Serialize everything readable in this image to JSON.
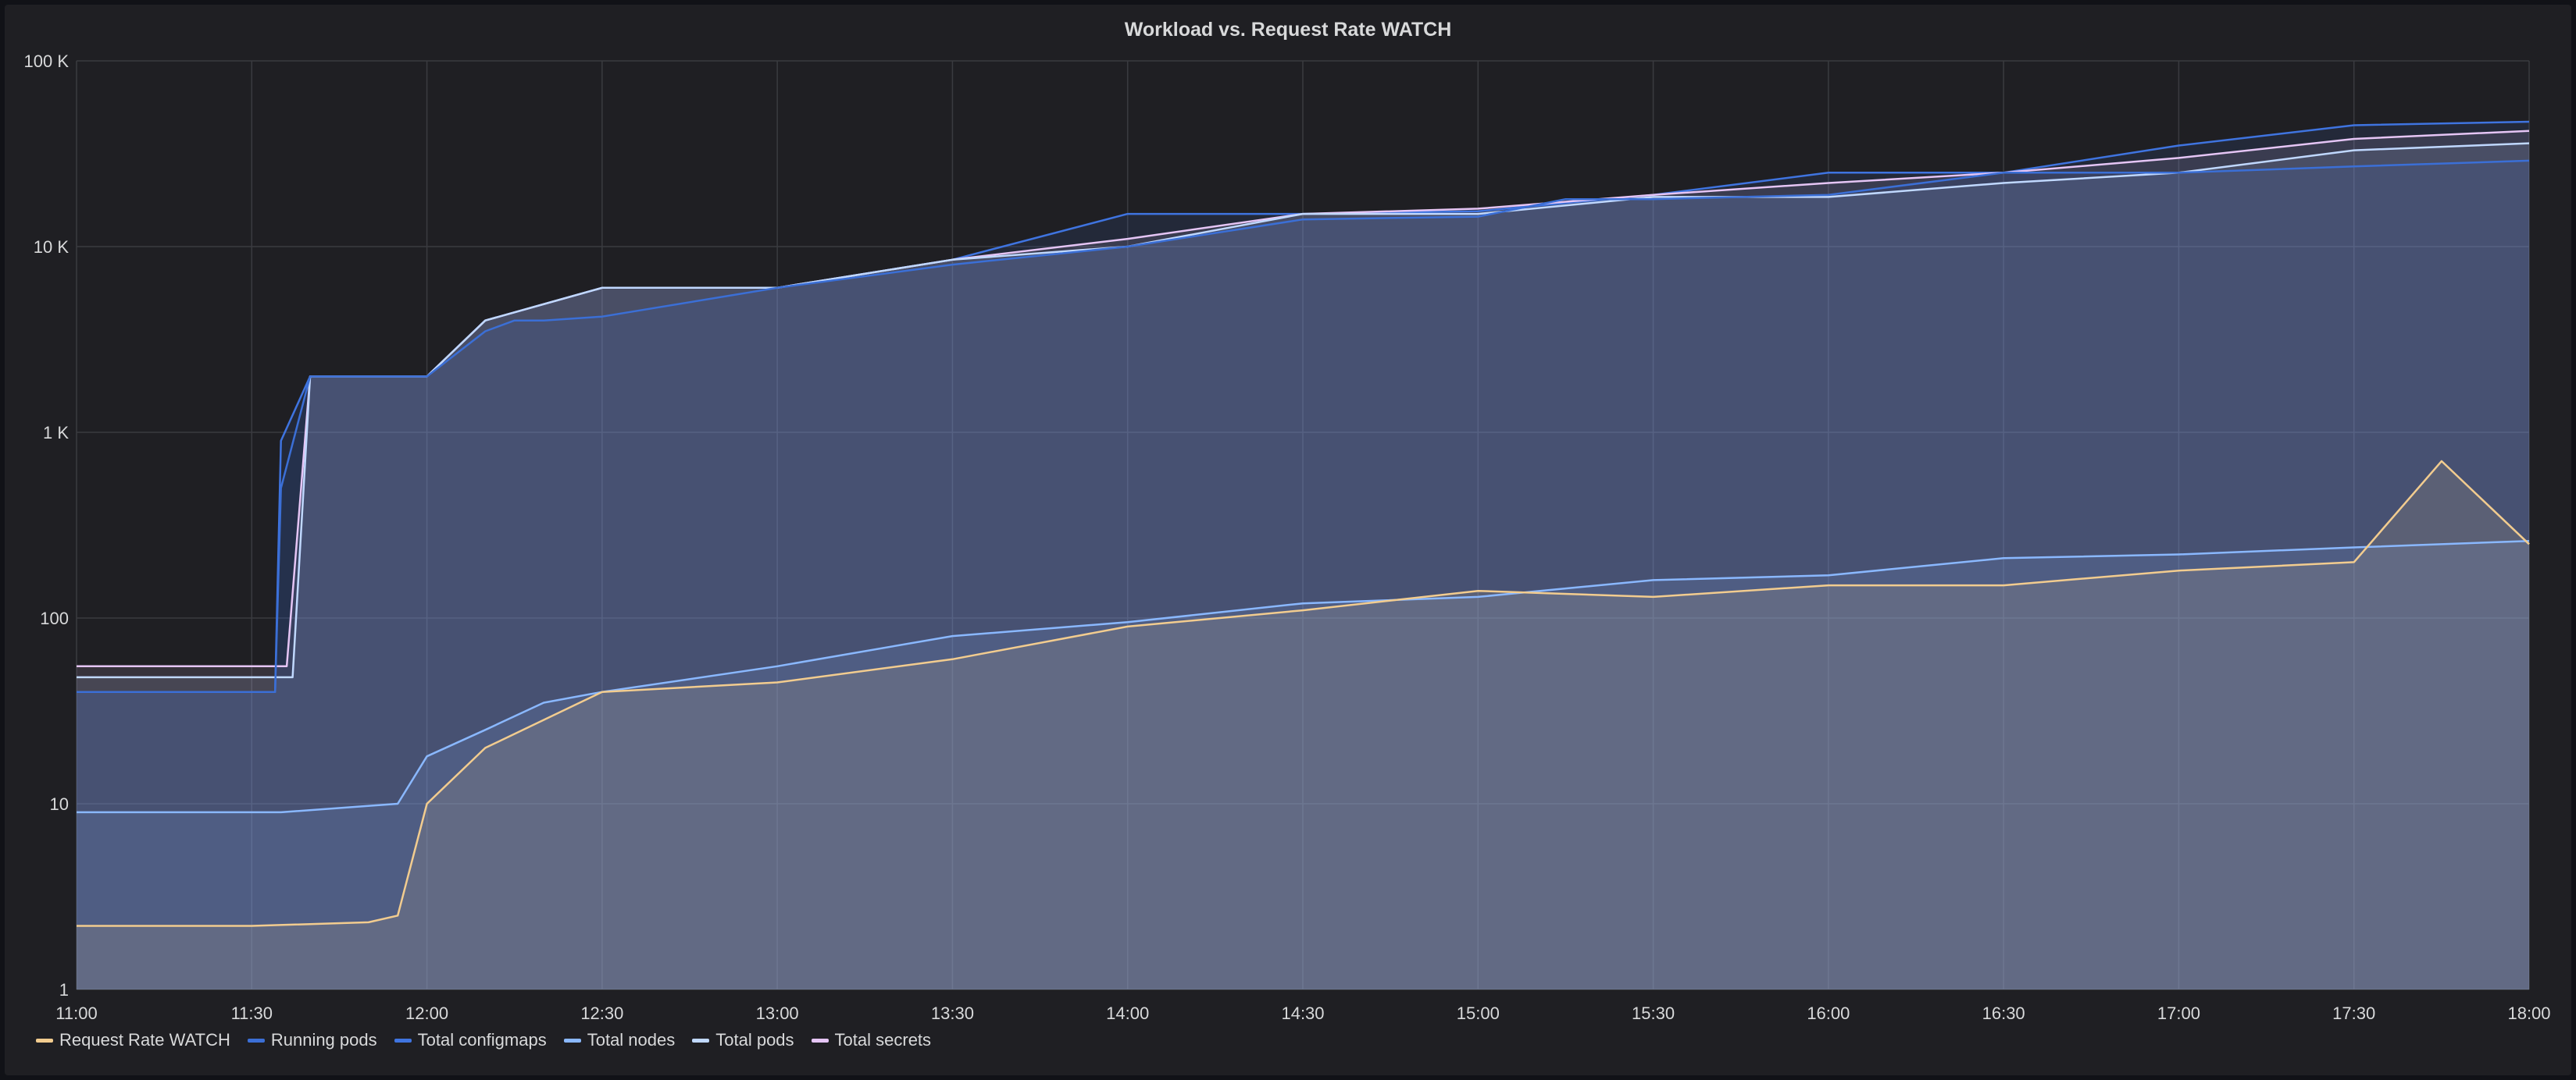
{
  "panel": {
    "title": "Workload vs. Request Rate WATCH"
  },
  "legend": [
    {
      "label": "Request Rate WATCH",
      "color": "#f2cc8f"
    },
    {
      "label": "Running pods",
      "color": "#3b6fd6"
    },
    {
      "label": "Total configmaps",
      "color": "#3f74e0"
    },
    {
      "label": "Total nodes",
      "color": "#8ab8ff"
    },
    {
      "label": "Total pods",
      "color": "#c0d8ff"
    },
    {
      "label": "Total secrets",
      "color": "#e5c5f5"
    }
  ],
  "chart_data": {
    "type": "line",
    "title": "Workload vs. Request Rate WATCH",
    "y_scale": "log",
    "ylim": [
      1,
      100000
    ],
    "y_ticks": [
      "1",
      "10",
      "100",
      "1 K",
      "10 K",
      "100 K"
    ],
    "y_tick_values": [
      1,
      10,
      100,
      1000,
      10000,
      100000
    ],
    "xlim": [
      "11:00",
      "18:00"
    ],
    "x_ticks": [
      "11:00",
      "11:30",
      "12:00",
      "12:30",
      "13:00",
      "13:30",
      "14:00",
      "14:30",
      "15:00",
      "15:30",
      "16:00",
      "16:30",
      "17:00",
      "17:30",
      "18:00"
    ],
    "grid": true,
    "legend_position": "bottom-left",
    "series": [
      {
        "name": "Request Rate WATCH",
        "color": "#f2cc8f",
        "x": [
          "11:00",
          "11:30",
          "11:50",
          "11:55",
          "12:00",
          "12:10",
          "12:30",
          "13:00",
          "13:30",
          "14:00",
          "14:30",
          "15:00",
          "15:30",
          "16:00",
          "16:30",
          "17:00",
          "17:30",
          "17:45",
          "18:00"
        ],
        "y": [
          2.2,
          2.2,
          2.3,
          2.5,
          10,
          20,
          40,
          45,
          60,
          90,
          110,
          140,
          130,
          150,
          150,
          180,
          200,
          700,
          250
        ]
      },
      {
        "name": "Running pods",
        "color": "#3b6fd6",
        "x": [
          "11:00",
          "11:34",
          "11:35",
          "11:40",
          "12:00",
          "12:10",
          "12:15",
          "12:20",
          "12:30",
          "13:00",
          "13:30",
          "14:00",
          "14:30",
          "15:00",
          "15:15",
          "15:20",
          "15:30",
          "16:00",
          "16:30",
          "17:00",
          "17:30",
          "18:00"
        ],
        "y": [
          40,
          40,
          500,
          2000,
          2000,
          3500,
          4000,
          4000,
          4200,
          6000,
          8000,
          10000,
          14000,
          14500,
          18000,
          18000,
          18000,
          19000,
          25000,
          25000,
          27000,
          29000
        ]
      },
      {
        "name": "Total configmaps",
        "color": "#3f74e0",
        "x": [
          "11:00",
          "11:34",
          "11:35",
          "11:40",
          "12:00",
          "12:10",
          "12:30",
          "13:00",
          "13:30",
          "14:00",
          "14:30",
          "15:00",
          "15:30",
          "16:00",
          "16:30",
          "17:00",
          "17:30",
          "18:00"
        ],
        "y": [
          40,
          40,
          900,
          2000,
          2000,
          4000,
          6000,
          6000,
          8500,
          15000,
          15000,
          15500,
          19000,
          25000,
          25000,
          35000,
          45000,
          47000
        ]
      },
      {
        "name": "Total nodes",
        "color": "#8ab8ff",
        "x": [
          "11:00",
          "11:34",
          "11:35",
          "11:55",
          "12:00",
          "12:10",
          "12:20",
          "12:30",
          "13:00",
          "13:30",
          "14:00",
          "14:30",
          "15:00",
          "15:30",
          "16:00",
          "16:30",
          "17:00",
          "17:30",
          "18:00"
        ],
        "y": [
          9,
          9,
          9,
          10,
          18,
          25,
          35,
          40,
          55,
          80,
          95,
          120,
          130,
          160,
          170,
          210,
          220,
          240,
          260
        ]
      },
      {
        "name": "Total pods",
        "color": "#c0d8ff",
        "x": [
          "11:00",
          "11:37",
          "11:40",
          "12:00",
          "12:10",
          "12:30",
          "13:00",
          "13:30",
          "14:00",
          "14:30",
          "15:00",
          "15:30",
          "16:00",
          "16:30",
          "17:00",
          "17:30",
          "18:00"
        ],
        "y": [
          48,
          48,
          2000,
          2000,
          4000,
          6000,
          6000,
          8500,
          10000,
          15000,
          15000,
          18500,
          18500,
          22000,
          25000,
          33000,
          36000
        ]
      },
      {
        "name": "Total secrets",
        "color": "#e5c5f5",
        "x": [
          "11:00",
          "11:36",
          "11:40",
          "12:00",
          "12:10",
          "12:30",
          "13:00",
          "13:30",
          "14:00",
          "14:30",
          "15:00",
          "15:30",
          "16:00",
          "16:30",
          "17:00",
          "17:30",
          "18:00"
        ],
        "y": [
          55,
          55,
          2000,
          2000,
          4000,
          6000,
          6000,
          8500,
          11000,
          15000,
          16000,
          19000,
          22000,
          25000,
          30000,
          38000,
          42000
        ]
      }
    ]
  }
}
